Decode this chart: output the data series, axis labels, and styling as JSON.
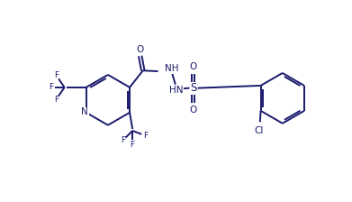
{
  "background": "#ffffff",
  "line_color": "#1a1a6e",
  "text_color": "#1a1a6e",
  "linewidth": 1.4,
  "fontsize": 7.5,
  "figsize": [
    3.91,
    2.24
  ],
  "dpi": 100,
  "xlim": [
    0,
    10
  ],
  "ylim": [
    0,
    5.74
  ]
}
